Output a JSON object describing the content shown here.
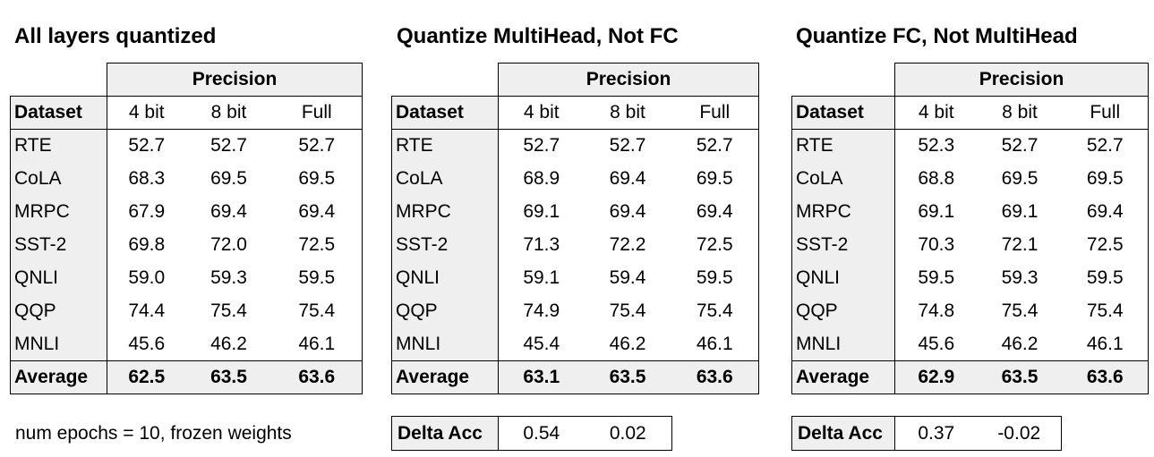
{
  "panels": [
    {
      "title": "All layers quantized",
      "precision_header": "Precision",
      "dataset_header": "Dataset",
      "columns": [
        "4 bit",
        "8 bit",
        "Full"
      ],
      "rows": [
        {
          "name": "RTE",
          "values": [
            "52.7",
            "52.7",
            "52.7"
          ]
        },
        {
          "name": "CoLA",
          "values": [
            "68.3",
            "69.5",
            "69.5"
          ]
        },
        {
          "name": "MRPC",
          "values": [
            "67.9",
            "69.4",
            "69.4"
          ]
        },
        {
          "name": "SST-2",
          "values": [
            "69.8",
            "72.0",
            "72.5"
          ]
        },
        {
          "name": "QNLI",
          "values": [
            "59.0",
            "59.3",
            "59.5"
          ]
        },
        {
          "name": "QQP",
          "values": [
            "74.4",
            "75.4",
            "75.4"
          ]
        },
        {
          "name": "MNLI",
          "values": [
            "45.6",
            "46.2",
            "46.1"
          ]
        }
      ],
      "average": {
        "label": "Average",
        "values": [
          "62.5",
          "63.5",
          "63.6"
        ]
      },
      "note": "num epochs = 10, frozen weights"
    },
    {
      "title": "Quantize MultiHead, Not FC",
      "precision_header": "Precision",
      "dataset_header": "Dataset",
      "columns": [
        "4 bit",
        "8 bit",
        "Full"
      ],
      "rows": [
        {
          "name": "RTE",
          "values": [
            "52.7",
            "52.7",
            "52.7"
          ]
        },
        {
          "name": "CoLA",
          "values": [
            "68.9",
            "69.4",
            "69.5"
          ]
        },
        {
          "name": "MRPC",
          "values": [
            "69.1",
            "69.4",
            "69.4"
          ]
        },
        {
          "name": "SST-2",
          "values": [
            "71.3",
            "72.2",
            "72.5"
          ]
        },
        {
          "name": "QNLI",
          "values": [
            "59.1",
            "59.4",
            "59.5"
          ]
        },
        {
          "name": "QQP",
          "values": [
            "74.9",
            "75.4",
            "75.4"
          ]
        },
        {
          "name": "MNLI",
          "values": [
            "45.4",
            "46.2",
            "46.1"
          ]
        }
      ],
      "average": {
        "label": "Average",
        "values": [
          "63.1",
          "63.5",
          "63.6"
        ]
      },
      "delta": {
        "label": "Delta Acc",
        "values": [
          "0.54",
          "0.02"
        ]
      }
    },
    {
      "title": "Quantize FC, Not MultiHead",
      "precision_header": "Precision",
      "dataset_header": "Dataset",
      "columns": [
        "4 bit",
        "8 bit",
        "Full"
      ],
      "rows": [
        {
          "name": "RTE",
          "values": [
            "52.3",
            "52.7",
            "52.7"
          ]
        },
        {
          "name": "CoLA",
          "values": [
            "68.8",
            "69.5",
            "69.5"
          ]
        },
        {
          "name": "MRPC",
          "values": [
            "69.1",
            "69.1",
            "69.4"
          ]
        },
        {
          "name": "SST-2",
          "values": [
            "70.3",
            "72.1",
            "72.5"
          ]
        },
        {
          "name": "QNLI",
          "values": [
            "59.5",
            "59.3",
            "59.5"
          ]
        },
        {
          "name": "QQP",
          "values": [
            "74.8",
            "75.4",
            "75.4"
          ]
        },
        {
          "name": "MNLI",
          "values": [
            "45.6",
            "46.2",
            "46.1"
          ]
        }
      ],
      "average": {
        "label": "Average",
        "values": [
          "62.9",
          "63.5",
          "63.6"
        ]
      },
      "delta": {
        "label": "Delta Acc",
        "values": [
          "0.37",
          "-0.02"
        ]
      }
    }
  ]
}
